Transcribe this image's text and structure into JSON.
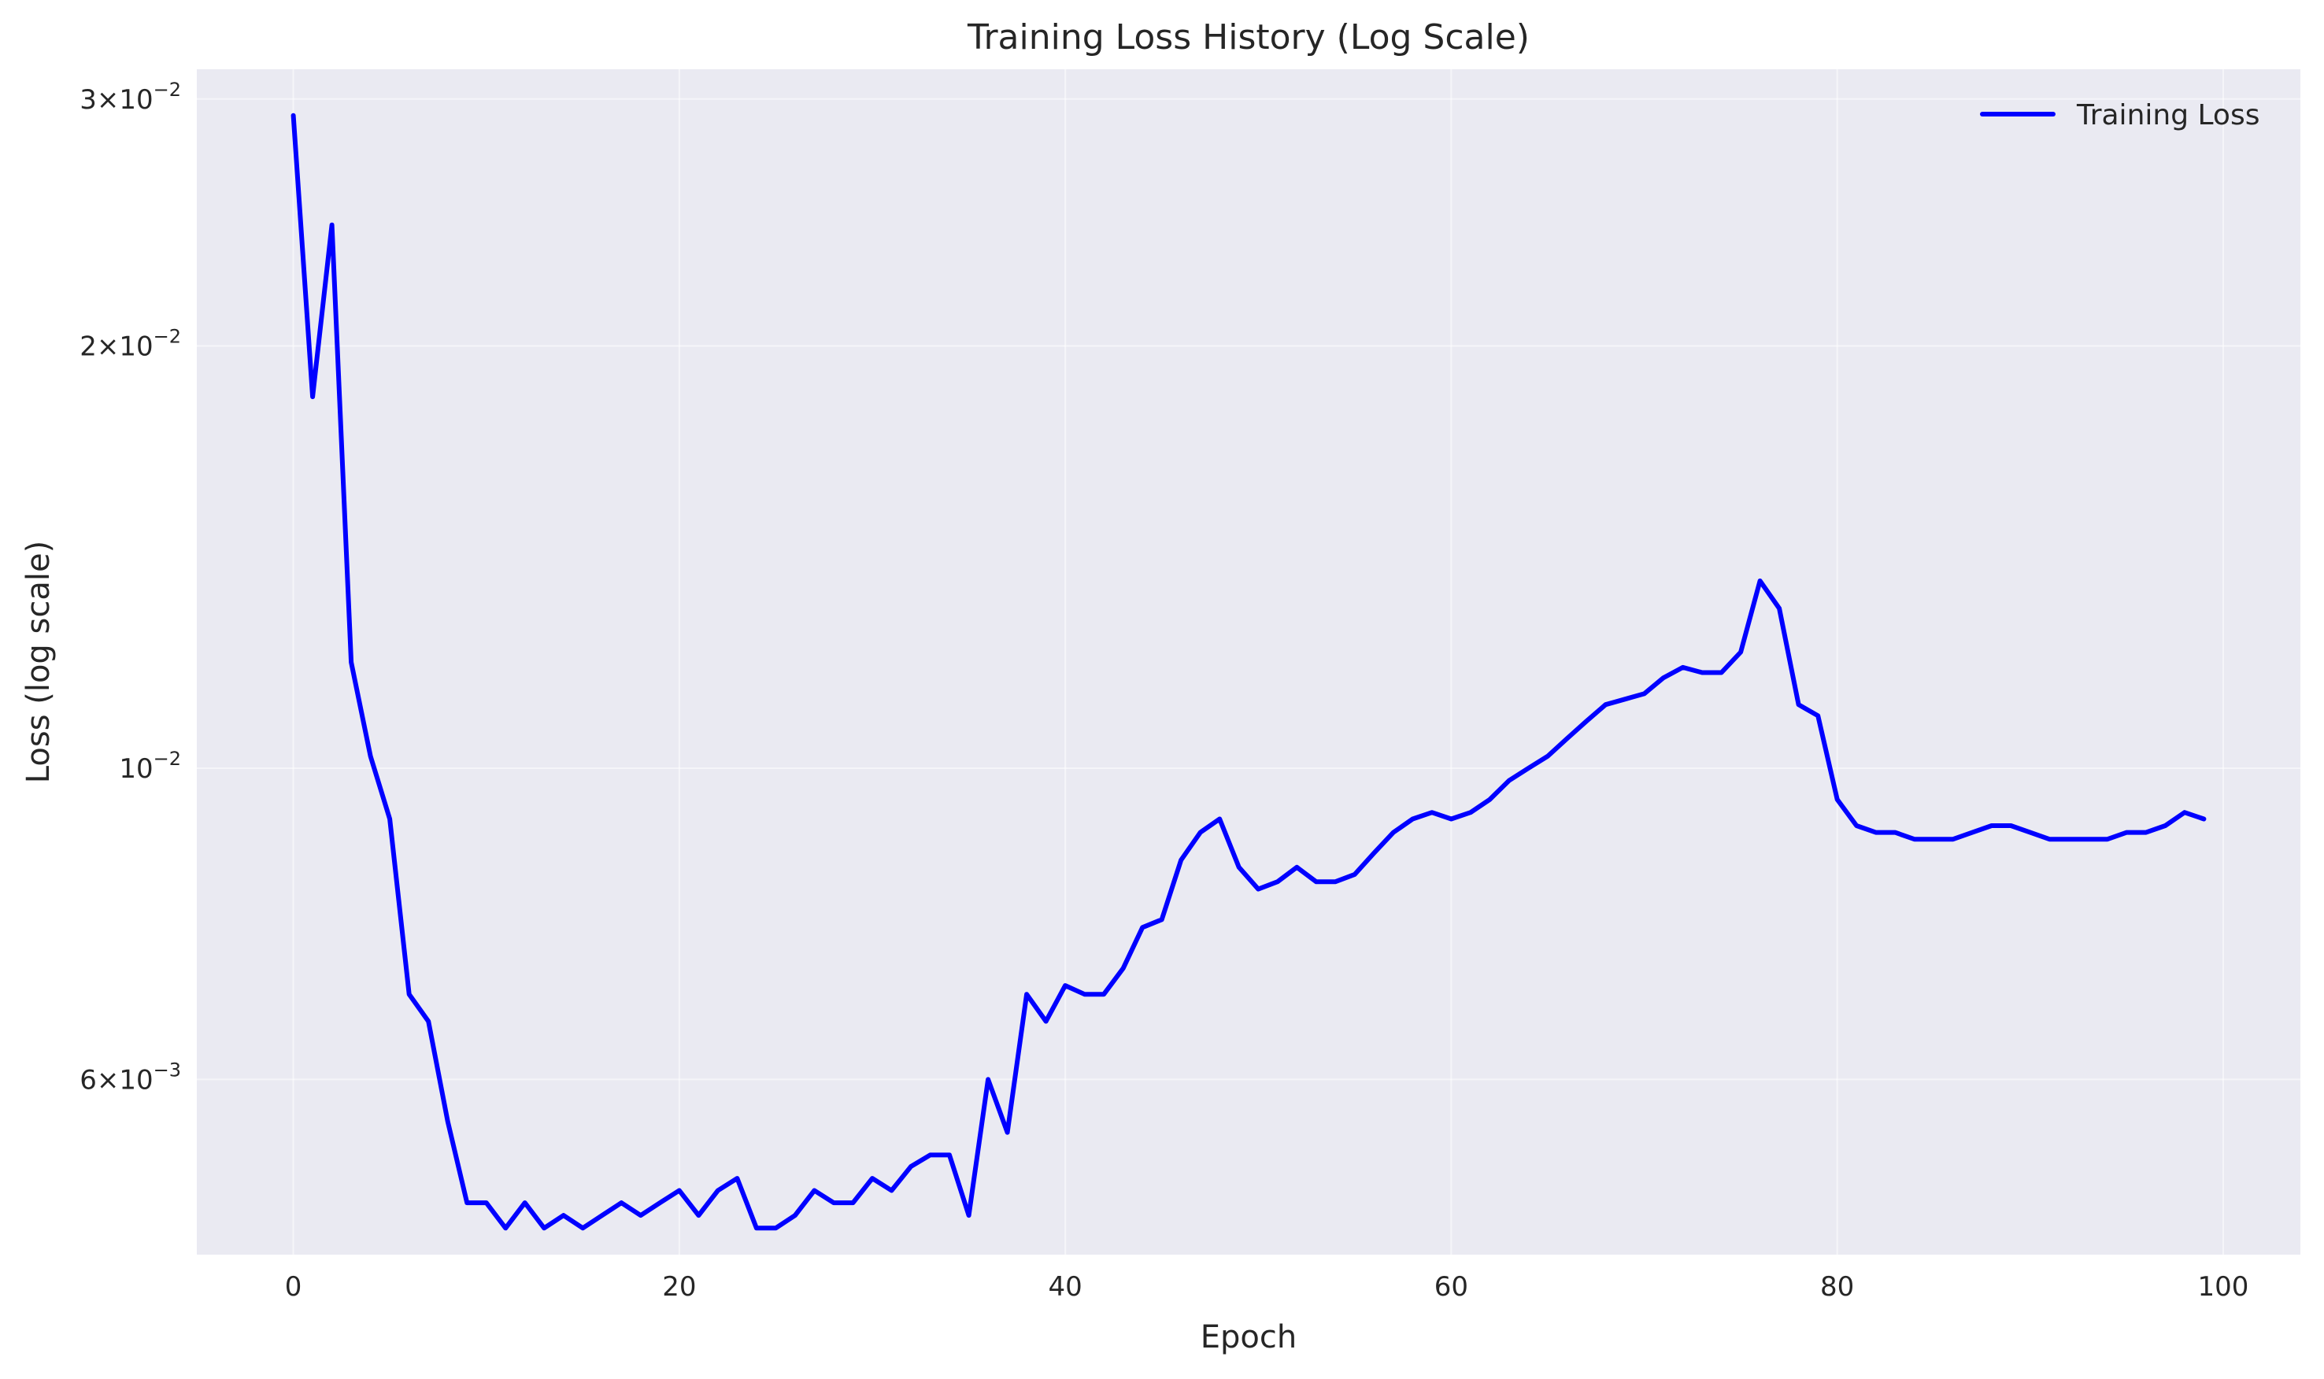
{
  "chart_data": {
    "type": "line",
    "title": "Training Loss History (Log Scale)",
    "xlabel": "Epoch",
    "ylabel": "Loss (log scale)",
    "yscale": "log",
    "xlim": [
      -5,
      104
    ],
    "ylim": [
      0.0045,
      0.0315
    ],
    "x_ticks": [
      0,
      20,
      40,
      60,
      80,
      100
    ],
    "x_tick_labels": [
      "0",
      "20",
      "40",
      "60",
      "80",
      "100"
    ],
    "y_ticks": [
      {
        "value": 0.006,
        "mantissa": "6",
        "exponent": "-3"
      },
      {
        "value": 0.01,
        "mantissa": "",
        "exponent": "-2"
      },
      {
        "value": 0.02,
        "mantissa": "2",
        "exponent": "-2"
      },
      {
        "value": 0.03,
        "mantissa": "3",
        "exponent": "-2"
      }
    ],
    "grid": true,
    "background": "#EAEAF2",
    "legend": {
      "position": "top-right"
    },
    "series": [
      {
        "name": "Training Loss",
        "color": "#0000FF",
        "x": [
          0,
          1,
          2,
          3,
          4,
          5,
          6,
          7,
          8,
          9,
          10,
          11,
          12,
          13,
          14,
          15,
          16,
          17,
          18,
          19,
          20,
          21,
          22,
          23,
          24,
          25,
          26,
          27,
          28,
          29,
          30,
          31,
          32,
          33,
          34,
          35,
          36,
          37,
          38,
          39,
          40,
          41,
          42,
          43,
          44,
          45,
          46,
          47,
          48,
          49,
          50,
          51,
          52,
          53,
          54,
          55,
          56,
          57,
          58,
          59,
          60,
          61,
          62,
          63,
          64,
          65,
          66,
          67,
          68,
          69,
          70,
          71,
          72,
          73,
          74,
          75,
          76,
          77,
          78,
          79,
          80,
          81,
          82,
          83,
          84,
          85,
          86,
          87,
          88,
          89,
          90,
          91,
          92,
          93,
          94,
          95,
          96,
          97,
          98,
          99
        ],
        "y": [
          0.0292,
          0.0184,
          0.0244,
          0.0119,
          0.0102,
          0.0092,
          0.0069,
          0.0066,
          0.0056,
          0.0049,
          0.0049,
          0.0047,
          0.0049,
          0.0047,
          0.0048,
          0.0047,
          0.0048,
          0.0049,
          0.0048,
          0.0049,
          0.005,
          0.0048,
          0.005,
          0.0051,
          0.0047,
          0.0047,
          0.0048,
          0.005,
          0.0049,
          0.0049,
          0.0051,
          0.005,
          0.0052,
          0.0053,
          0.0053,
          0.0048,
          0.006,
          0.0055,
          0.0069,
          0.0066,
          0.007,
          0.0069,
          0.0069,
          0.0072,
          0.0077,
          0.0078,
          0.0086,
          0.009,
          0.0092,
          0.0085,
          0.0082,
          0.0083,
          0.0085,
          0.0083,
          0.0083,
          0.0084,
          0.0087,
          0.009,
          0.0092,
          0.0093,
          0.0092,
          0.0093,
          0.0095,
          0.0098,
          0.01,
          0.0102,
          0.0105,
          0.0108,
          0.0111,
          0.0112,
          0.0113,
          0.0116,
          0.0118,
          0.0117,
          0.0117,
          0.0121,
          0.0136,
          0.013,
          0.0111,
          0.0109,
          0.0095,
          0.0091,
          0.009,
          0.009,
          0.0089,
          0.0089,
          0.0089,
          0.009,
          0.0091,
          0.0091,
          0.009,
          0.0089,
          0.0089,
          0.0089,
          0.0089,
          0.009,
          0.009,
          0.0091,
          0.0093,
          0.0092
        ]
      }
    ]
  }
}
